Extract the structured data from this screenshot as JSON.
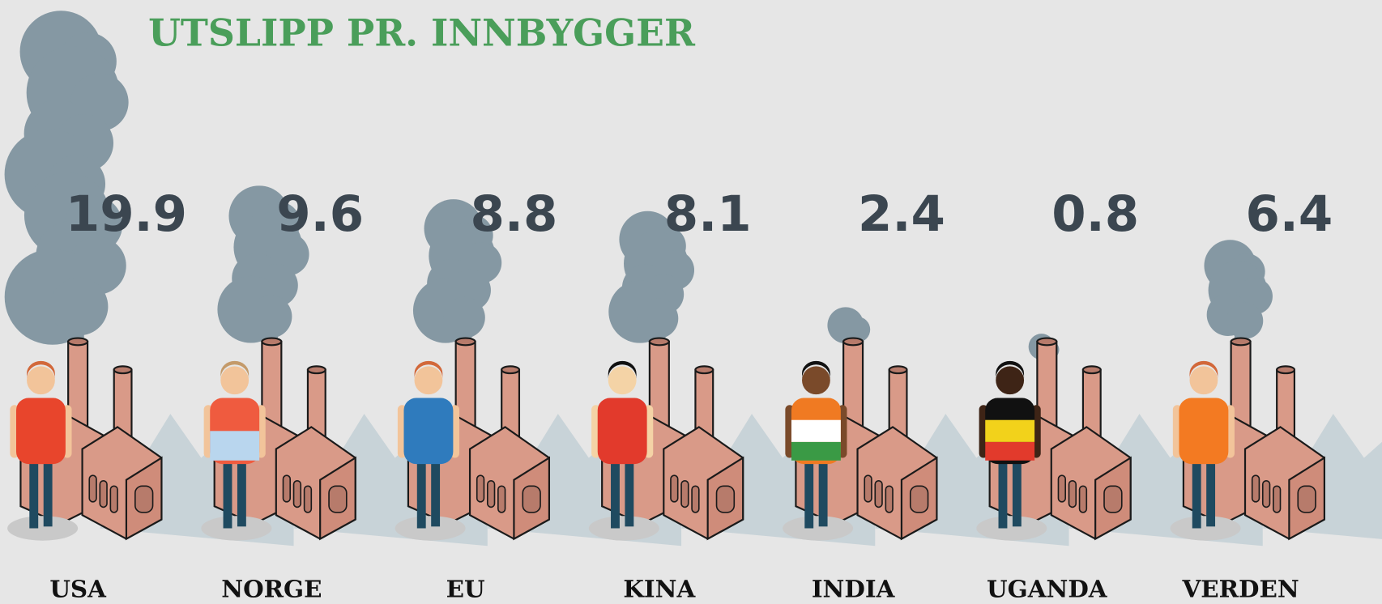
{
  "chart_data": {
    "type": "smoke",
    "title": "UTSLIPP PR. INNBYGGER",
    "categories": [
      "USA",
      "NORGE",
      "EU",
      "KINA",
      "INDIA",
      "UGANDA",
      "VERDEN"
    ],
    "values": [
      19.9,
      9.6,
      8.8,
      8.1,
      2.4,
      0.8,
      6.4
    ],
    "color": "#8598a3"
  }
}
